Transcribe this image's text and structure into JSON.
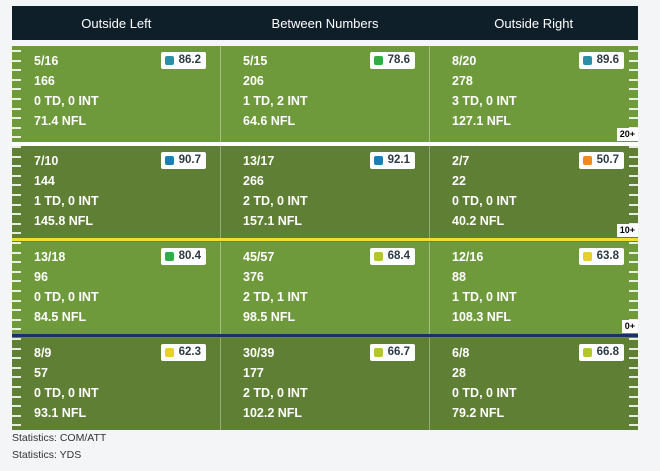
{
  "columns": [
    "Outside Left",
    "Between Numbers",
    "Outside Right"
  ],
  "colors": {
    "blue": "#2a8fb3",
    "green": "#2fae46",
    "teal": "#1a7fb4",
    "orange": "#f08a1c",
    "lime": "#b4c72a",
    "yellow": "#e6cf2e"
  },
  "rows": [
    {
      "cells": [
        {
          "comp": "5/16",
          "yds": "166",
          "tdint": "0 TD, 0 INT",
          "nfl": "71.4 NFL",
          "grade": "86.2",
          "color": "#2b8fa8"
        },
        {
          "comp": "5/15",
          "yds": "206",
          "tdint": "1 TD, 2 INT",
          "nfl": "64.6 NFL",
          "grade": "78.6",
          "color": "#2fae46"
        },
        {
          "comp": "8/20",
          "yds": "278",
          "tdint": "3 TD, 0 INT",
          "nfl": "127.1 NFL",
          "grade": "89.6",
          "color": "#2b8fa8"
        }
      ]
    },
    {
      "cells": [
        {
          "comp": "7/10",
          "yds": "144",
          "tdint": "1 TD, 0 INT",
          "nfl": "145.8 NFL",
          "grade": "90.7",
          "color": "#1a7fb4"
        },
        {
          "comp": "13/17",
          "yds": "266",
          "tdint": "2 TD, 0 INT",
          "nfl": "157.1 NFL",
          "grade": "92.1",
          "color": "#1a7fb4"
        },
        {
          "comp": "2/7",
          "yds": "22",
          "tdint": "0 TD, 0 INT",
          "nfl": "40.2 NFL",
          "grade": "50.7",
          "color": "#f08a1c"
        }
      ]
    },
    {
      "cells": [
        {
          "comp": "13/18",
          "yds": "96",
          "tdint": "0 TD, 0 INT",
          "nfl": "84.5 NFL",
          "grade": "80.4",
          "color": "#2fae46"
        },
        {
          "comp": "45/57",
          "yds": "376",
          "tdint": "2 TD, 1 INT",
          "nfl": "98.5 NFL",
          "grade": "68.4",
          "color": "#b4c72a"
        },
        {
          "comp": "12/16",
          "yds": "88",
          "tdint": "1 TD, 0 INT",
          "nfl": "108.3 NFL",
          "grade": "63.8",
          "color": "#e6cf2e"
        }
      ]
    },
    {
      "cells": [
        {
          "comp": "8/9",
          "yds": "57",
          "tdint": "0 TD, 0 INT",
          "nfl": "93.1 NFL",
          "grade": "62.3",
          "color": "#e6cf2e"
        },
        {
          "comp": "30/39",
          "yds": "177",
          "tdint": "2 TD, 0 INT",
          "nfl": "102.2 NFL",
          "grade": "66.7",
          "color": "#b4c72a"
        },
        {
          "comp": "6/8",
          "yds": "28",
          "tdint": "0 TD, 0 INT",
          "nfl": "79.2 NFL",
          "grade": "66.8",
          "color": "#b4c72a"
        }
      ]
    }
  ],
  "yard_markers": [
    "20+",
    "10+",
    "0+"
  ],
  "divider_colors": [
    "#ffffff",
    "#f0e02a",
    "#1d2f6b"
  ],
  "footnotes": [
    "Statistics: COM/ATT",
    "Statistics: YDS"
  ]
}
